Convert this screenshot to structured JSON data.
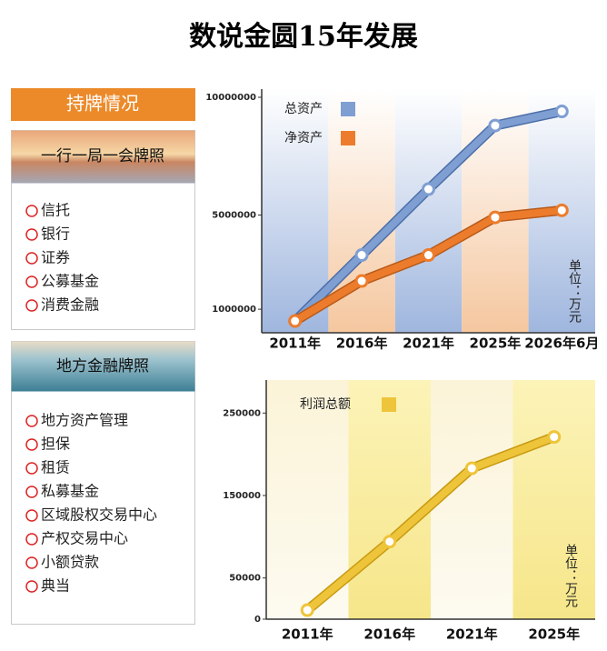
{
  "title": "数说金圆15年发展",
  "panel": {
    "title": "持牌情况",
    "sections": [
      {
        "title": "一行一局一会牌照",
        "items": [
          "信托",
          "银行",
          "证券",
          "公募基金",
          "消费金融"
        ]
      },
      {
        "title": "地方金融牌照",
        "items": [
          "地方资产管理",
          "担保",
          "租赁",
          "私募基金",
          "区域股权交易中心",
          "产权交易中心",
          "小额贷款",
          "典当"
        ]
      }
    ]
  },
  "chart_data": [
    {
      "type": "line",
      "categories": [
        "2011年",
        "2016年",
        "2021年",
        "2025年",
        "2026年6月"
      ],
      "series": [
        {
          "name": "总资产",
          "color": "#7f9fd3",
          "values": [
            500000,
            3300000,
            6100000,
            8800000,
            9400000
          ]
        },
        {
          "name": "净资产",
          "color": "#ec7c2c",
          "values": [
            500000,
            2200000,
            3300000,
            4900000,
            5200000
          ]
        }
      ],
      "ylim": [
        0,
        10000000
      ],
      "yticks": [
        1000000,
        5000000,
        10000000
      ],
      "unit": "单位：万元"
    },
    {
      "type": "line",
      "categories": [
        "2011年",
        "2016年",
        "2021年",
        "2025年"
      ],
      "series": [
        {
          "name": "利润总额",
          "color": "#eec53a",
          "values": [
            11000,
            94000,
            183000,
            221000
          ]
        }
      ],
      "ylim": [
        0,
        290000
      ],
      "yticks": [
        0,
        50000,
        150000,
        250000
      ],
      "unit": "单位：万元"
    }
  ]
}
